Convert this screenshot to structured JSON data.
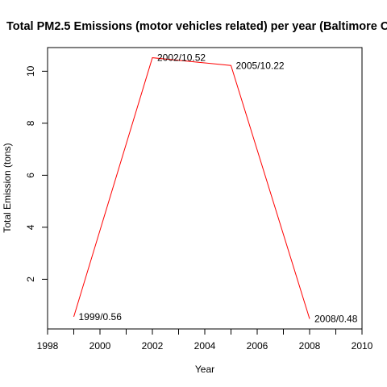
{
  "chart_data": {
    "type": "line",
    "title": "Total PM2.5 Emissions (motor vehicles related) per year (Baltimore C",
    "xlabel": "Year",
    "ylabel": "Total Emission (tons)",
    "x": [
      1999,
      2002,
      2005,
      2008
    ],
    "y": [
      0.56,
      10.52,
      10.22,
      0.48
    ],
    "point_labels": [
      "1999/0.56",
      "2002/10.52",
      "2005/10.22",
      "2008/0.48"
    ],
    "xlim": [
      1998,
      2010
    ],
    "ylim": [
      0.09,
      10.91
    ],
    "x_ticks": [
      1998,
      1999,
      2000,
      2001,
      2002,
      2003,
      2004,
      2005,
      2006,
      2007,
      2008,
      2009,
      2010
    ],
    "x_tick_labels": [
      "1998",
      "",
      "2000",
      "",
      "2002",
      "",
      "2004",
      "",
      "2006",
      "",
      "2008",
      "",
      "2010"
    ],
    "y_ticks": [
      2,
      4,
      6,
      8,
      10
    ],
    "y_tick_labels": [
      "2",
      "4",
      "6",
      "8",
      "10"
    ],
    "line_color": "#ff0000",
    "grid": false,
    "legend": "none"
  }
}
